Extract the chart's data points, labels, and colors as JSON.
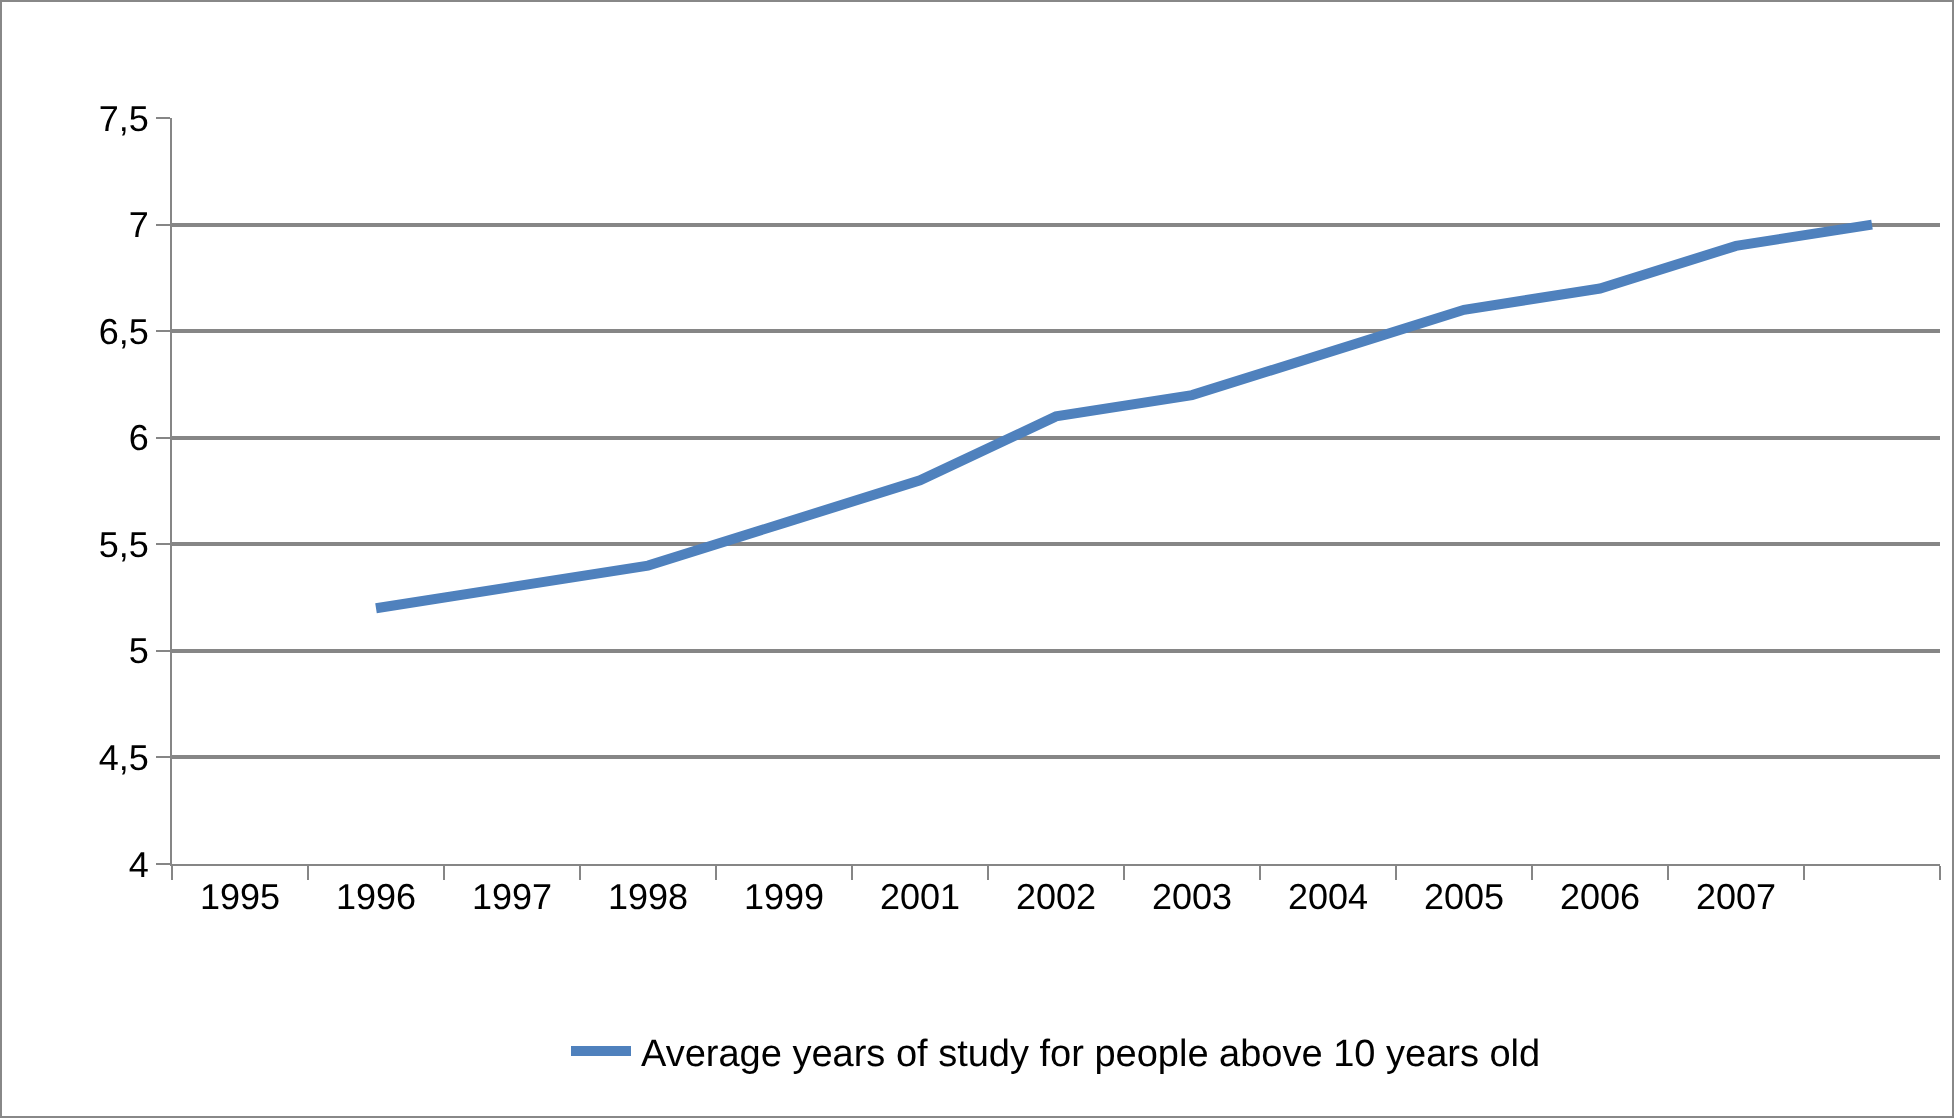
{
  "chart_data": {
    "type": "line",
    "categories": [
      "1995",
      "1996",
      "1997",
      "1998",
      "1999",
      "2001",
      "2002",
      "2003",
      "2004",
      "2005",
      "2006",
      "2007",
      null
    ],
    "series": [
      {
        "name": "Average years of study for people above 10 years old",
        "color": "#4f81bd",
        "values": [
          null,
          5.2,
          5.3,
          5.4,
          5.6,
          5.8,
          6.1,
          6.2,
          6.4,
          6.6,
          6.7,
          6.9,
          7.0
        ]
      }
    ],
    "ylim": [
      4,
      7.5
    ],
    "yticks": [
      4,
      {
        "value": 4.5,
        "label": "4,5"
      },
      5,
      {
        "value": 5.5,
        "label": "5,5"
      },
      6,
      {
        "value": 6.5,
        "label": "6,5"
      },
      7,
      {
        "value": 7.5,
        "label": "7,5"
      }
    ],
    "grid": "y",
    "legend": "bottom",
    "marker": "none",
    "line_style": "solid"
  }
}
